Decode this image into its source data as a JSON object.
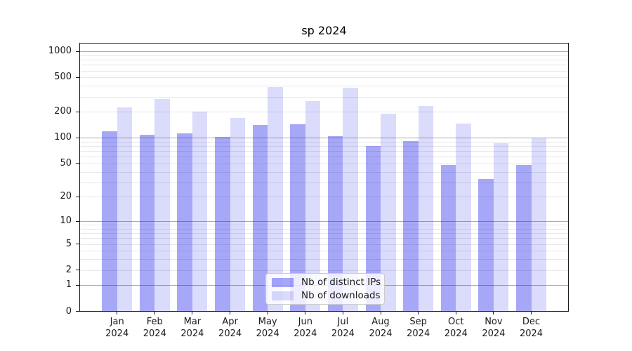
{
  "title": "sp 2024",
  "chart_data": {
    "type": "bar",
    "title": "sp 2024",
    "yscale": "log1p (symlog-like, decades emphasized)",
    "grid": true,
    "legend_position": "lower center",
    "categories": [
      "Jan 2024",
      "Feb 2024",
      "Mar 2024",
      "Apr 2024",
      "May 2024",
      "Jun 2024",
      "Jul 2024",
      "Aug 2024",
      "Sep 2024",
      "Oct 2024",
      "Nov 2024",
      "Dec 2024"
    ],
    "series": [
      {
        "name": "Nb of distinct IPs",
        "color": "#a9a9f7",
        "fill": "rgba(10,10,235,0.36)",
        "values": [
          119,
          108,
          112,
          102,
          140,
          144,
          105,
          80,
          92,
          48,
          33,
          48
        ]
      },
      {
        "name": "Nb of downloads",
        "color": "#dcdcfb",
        "fill": "rgba(10,10,235,0.145)",
        "values": [
          225,
          280,
          203,
          171,
          385,
          267,
          380,
          192,
          233,
          146,
          86,
          99
        ]
      }
    ],
    "yticks": [
      0,
      1,
      2,
      5,
      10,
      20,
      50,
      100,
      200,
      500,
      1000
    ],
    "ylim": [
      0,
      1250
    ],
    "xlabel": "",
    "ylabel": ""
  },
  "colors": {
    "major_gridline": "#ababab",
    "minor_gridline": "#e7e7e7",
    "axis": "#1a1a1a",
    "text": "#1a1a1a"
  }
}
